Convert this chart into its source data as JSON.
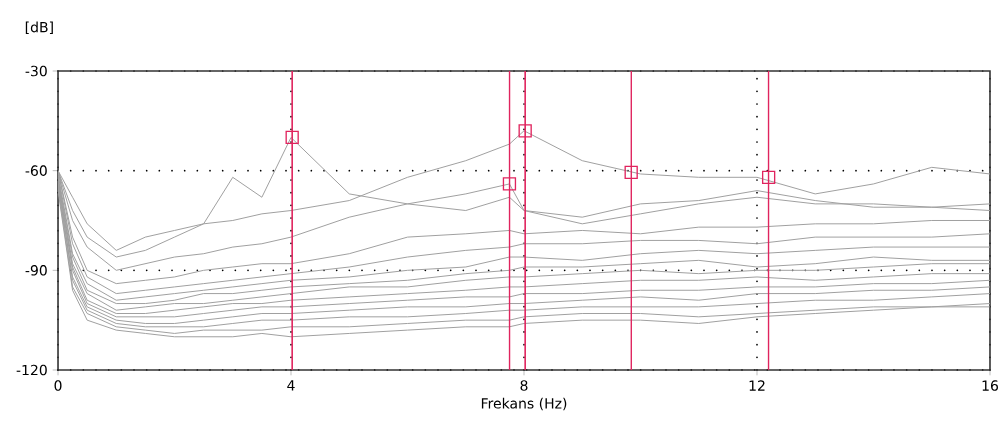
{
  "chart_data": {
    "type": "line",
    "xlabel": "Frekans (Hz)",
    "ylabel": "[dB]",
    "x": [
      0,
      0.25,
      0.5,
      1,
      1.5,
      2,
      2.5,
      3,
      3.5,
      4,
      5,
      6,
      7,
      7.75,
      8,
      9,
      10,
      11,
      12,
      13,
      14,
      15,
      16
    ],
    "xlim": [
      0,
      16
    ],
    "xticks": [
      0,
      4,
      8,
      12,
      16
    ],
    "ylim": [
      -120,
      -30
    ],
    "yticks": [
      -30,
      -60,
      -90,
      -120
    ],
    "grid": true,
    "marker": "none",
    "line_style": "solid",
    "series": [
      {
        "color": "#a0a0a0",
        "values": [
          -60,
          -72,
          -80,
          -86,
          -84,
          -80,
          -76,
          -62,
          -68,
          -50,
          -67,
          -70,
          -72,
          -68,
          -72,
          -76,
          -73,
          -70,
          -68,
          -70,
          -70,
          -71,
          -70
        ]
      },
      {
        "color": "#a0a0a0",
        "values": [
          -60,
          -68,
          -76,
          -84,
          -80,
          -78,
          -76,
          -75,
          -73,
          -72,
          -69,
          -62,
          -57,
          -52,
          -48,
          -57,
          -61,
          -62,
          -62,
          -67,
          -64,
          -59,
          -61
        ]
      },
      {
        "color": "#a0a0a0",
        "values": [
          -60,
          -75,
          -83,
          -90,
          -88,
          -86,
          -85,
          -83,
          -82,
          -80,
          -74,
          -70,
          -67,
          -64,
          -72,
          -74,
          -70,
          -69,
          -66,
          -69,
          -71,
          -71,
          -72
        ]
      },
      {
        "color": "#a0a0a0",
        "values": [
          -60,
          -80,
          -90,
          -94,
          -93,
          -92,
          -90,
          -89,
          -88,
          -88,
          -85,
          -80,
          -79,
          -78,
          -79,
          -78,
          -79,
          -77,
          -77,
          -76,
          -76,
          -75,
          -75
        ]
      },
      {
        "color": "#a0a0a0",
        "values": [
          -60,
          -82,
          -92,
          -97,
          -96,
          -95,
          -94,
          -93,
          -92,
          -91,
          -89,
          -86,
          -84,
          -83,
          -82,
          -82,
          -81,
          -81,
          -82,
          -80,
          -80,
          -80,
          -79
        ]
      },
      {
        "color": "#a0a0a0",
        "values": [
          -61,
          -85,
          -94,
          -99,
          -98,
          -97,
          -96,
          -95,
          -94,
          -93,
          -92,
          -90,
          -89,
          -86,
          -86,
          -87,
          -85,
          -84,
          -85,
          -84,
          -83,
          -83,
          -83
        ]
      },
      {
        "color": "#a0a0a0",
        "values": [
          -62,
          -86,
          -96,
          -100,
          -100,
          -99,
          -97,
          -97,
          -96,
          -95,
          -94,
          -93,
          -91,
          -90,
          -89,
          -89,
          -88,
          -87,
          -89,
          -88,
          -86,
          -87,
          -87
        ]
      },
      {
        "color": "#a0a0a0",
        "values": [
          -62,
          -88,
          -97,
          -102,
          -101,
          -100,
          -100,
          -99,
          -98,
          -97,
          -95,
          -95,
          -93,
          -92,
          -92,
          -91,
          -90,
          -91,
          -90,
          -90,
          -89,
          -88,
          -88
        ]
      },
      {
        "color": "#a0a0a0",
        "values": [
          -63,
          -89,
          -99,
          -103,
          -103,
          -102,
          -101,
          -100,
          -100,
          -99,
          -98,
          -97,
          -96,
          -95,
          -95,
          -94,
          -93,
          -93,
          -92,
          -93,
          -92,
          -91,
          -91
        ]
      },
      {
        "color": "#a0a0a0",
        "values": [
          -63,
          -90,
          -100,
          -104,
          -104,
          -104,
          -103,
          -102,
          -101,
          -101,
          -100,
          -99,
          -98,
          -98,
          -97,
          -97,
          -96,
          -96,
          -95,
          -95,
          -94,
          -94,
          -93
        ]
      },
      {
        "color": "#a0a0a0",
        "values": [
          -64,
          -92,
          -101,
          -105,
          -106,
          -106,
          -105,
          -104,
          -103,
          -103,
          -102,
          -101,
          -101,
          -100,
          -100,
          -99,
          -98,
          -99,
          -97,
          -97,
          -96,
          -96,
          -95
        ]
      },
      {
        "color": "#a0a0a0",
        "values": [
          -64,
          -93,
          -102,
          -106,
          -107,
          -107,
          -107,
          -106,
          -105,
          -105,
          -104,
          -104,
          -103,
          -102,
          -102,
          -101,
          -101,
          -101,
          -100,
          -99,
          -99,
          -98,
          -97
        ]
      },
      {
        "color": "#a0a0a0",
        "values": [
          -65,
          -95,
          -103,
          -107,
          -108,
          -109,
          -108,
          -108,
          -108,
          -107,
          -107,
          -106,
          -105,
          -105,
          -104,
          -103,
          -103,
          -104,
          -103,
          -102,
          -101,
          -101,
          -100
        ]
      },
      {
        "color": "#a0a0a0",
        "values": [
          -66,
          -96,
          -105,
          -108,
          -109,
          -110,
          -110,
          -110,
          -109,
          -110,
          -109,
          -108,
          -107,
          -107,
          -106,
          -105,
          -105,
          -106,
          -104,
          -103,
          -102,
          -101,
          -101
        ]
      },
      {
        "type": "scatter",
        "marker": "square",
        "color": "#e0245e",
        "x": [
          4.02,
          7.75,
          8.02,
          9.84,
          12.2
        ],
        "values": [
          -50,
          -64,
          -48,
          -60.5,
          -62
        ]
      }
    ],
    "ref_lines": [
      {
        "axis": "x",
        "value": 4.02,
        "color": "#e0245e",
        "line_style": "solid"
      },
      {
        "axis": "x",
        "value": 7.75,
        "color": "#e0245e",
        "line_style": "solid"
      },
      {
        "axis": "x",
        "value": 8.02,
        "color": "#e0245e",
        "line_style": "solid"
      },
      {
        "axis": "x",
        "value": 9.84,
        "color": "#e0245e",
        "line_style": "solid"
      },
      {
        "axis": "x",
        "value": 12.2,
        "color": "#e0245e",
        "line_style": "solid"
      }
    ]
  }
}
